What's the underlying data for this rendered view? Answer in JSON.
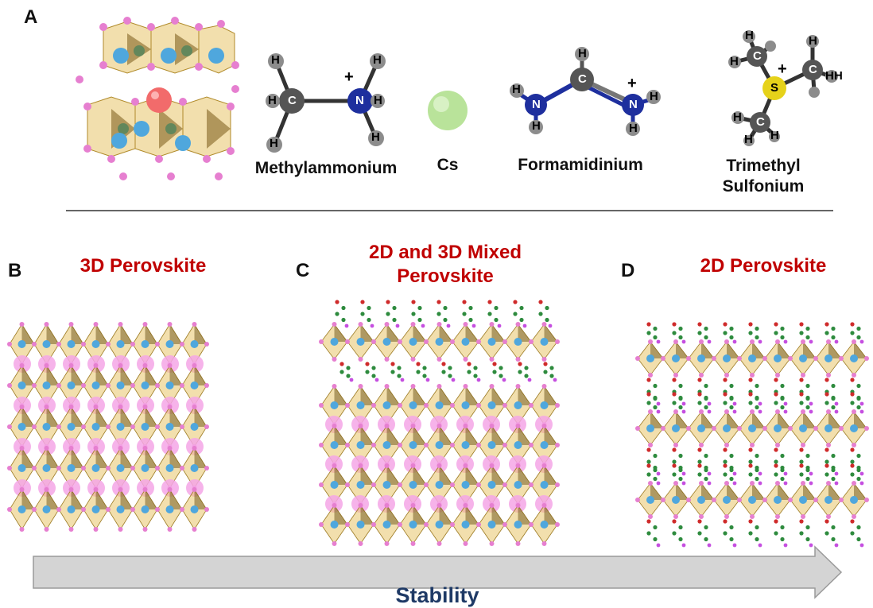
{
  "panels": {
    "a": "A",
    "b": "B",
    "c": "C",
    "d": "D"
  },
  "molecules": {
    "methylammonium": "Methylammonium",
    "cs": "Cs",
    "formamidinium": "Formamidinium",
    "trimethyl_line1": "Trimethyl",
    "trimethyl_line2": "Sulfonium"
  },
  "atoms": {
    "h": "H",
    "c": "C",
    "n": "N",
    "s": "S",
    "plus": "+"
  },
  "structures": {
    "b_title": "3D Perovskite",
    "c_title_line1": "2D and 3D Mixed",
    "c_title_line2": "Perovskite",
    "d_title": "2D Perovskite"
  },
  "arrow": {
    "label": "Stability"
  },
  "colors": {
    "title_red": "#c00000",
    "arrow_fill": "#d4d4d4",
    "arrow_text": "#1f3a66",
    "octahedron": "#e7c56a",
    "halide": "#e67fd0",
    "metal": "#4fa7dd",
    "cation": "#f4a6e6",
    "organic_c": "#2e8b3e",
    "organic_n": "#cf2b2b"
  }
}
